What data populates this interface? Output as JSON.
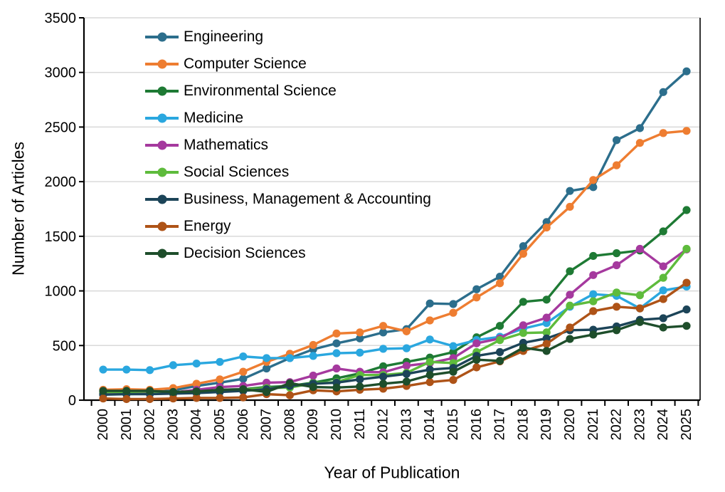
{
  "chart_data": {
    "type": "line",
    "title": "",
    "xlabel": "Year of Publication",
    "ylabel": "Number of Articles",
    "categories": [
      "2000",
      "2001",
      "2002",
      "2003",
      "2004",
      "2005",
      "2006",
      "2007",
      "2008",
      "2009",
      "2010",
      "2011",
      "2012",
      "2013",
      "2014",
      "2015",
      "2016",
      "2017",
      "2018",
      "2019",
      "2020",
      "2021",
      "2022",
      "2023",
      "2024",
      "2025"
    ],
    "ylim": [
      0,
      3500
    ],
    "ytick_step": 500,
    "grid": "horizontal",
    "grid_color": "#D9D9D9",
    "axis_color": "#000000",
    "legend_position": "top-left-inside",
    "series": [
      {
        "name": "Engineering",
        "color": "#2C6E8C",
        "values": [
          60,
          70,
          70,
          90,
          130,
          160,
          195,
          290,
          385,
          465,
          520,
          565,
          620,
          650,
          885,
          880,
          1015,
          1130,
          1410,
          1630,
          1915,
          1950,
          2380,
          2490,
          2820,
          3010
        ]
      },
      {
        "name": "Computer Science",
        "color": "#EE7D31",
        "values": [
          95,
          100,
          95,
          110,
          150,
          190,
          260,
          350,
          425,
          505,
          610,
          620,
          680,
          630,
          730,
          800,
          940,
          1070,
          1340,
          1580,
          1770,
          2015,
          2150,
          2355,
          2445,
          2465
        ]
      },
      {
        "name": "Environmental Science",
        "color": "#1E7A34",
        "values": [
          60,
          55,
          60,
          60,
          75,
          95,
          100,
          120,
          130,
          160,
          200,
          245,
          310,
          350,
          390,
          440,
          575,
          680,
          900,
          920,
          1180,
          1320,
          1345,
          1370,
          1545,
          1740
        ]
      },
      {
        "name": "Medicine",
        "color": "#2AA7DF",
        "values": [
          280,
          280,
          275,
          320,
          335,
          350,
          400,
          385,
          385,
          405,
          430,
          435,
          470,
          475,
          555,
          495,
          550,
          580,
          655,
          705,
          855,
          970,
          955,
          840,
          1005,
          1040
        ]
      },
      {
        "name": "Mathematics",
        "color": "#A5399E",
        "values": [
          70,
          75,
          75,
          70,
          95,
          120,
          130,
          160,
          165,
          225,
          290,
          260,
          255,
          315,
          340,
          385,
          520,
          565,
          685,
          755,
          965,
          1145,
          1235,
          1385,
          1225,
          1380
        ]
      },
      {
        "name": "Social Sciences",
        "color": "#5EBB3C",
        "values": [
          75,
          75,
          80,
          65,
          75,
          85,
          95,
          110,
          115,
          155,
          165,
          230,
          230,
          250,
          350,
          340,
          440,
          550,
          615,
          620,
          865,
          905,
          985,
          960,
          1120,
          1385
        ]
      },
      {
        "name": "Business, Management & Accounting",
        "color": "#1C4458",
        "values": [
          50,
          55,
          55,
          60,
          65,
          75,
          85,
          100,
          130,
          150,
          160,
          190,
          215,
          240,
          280,
          295,
          405,
          440,
          525,
          565,
          640,
          645,
          675,
          735,
          750,
          830
        ]
      },
      {
        "name": "Energy",
        "color": "#AE5317",
        "values": [
          15,
          10,
          10,
          15,
          20,
          20,
          25,
          55,
          45,
          90,
          80,
          95,
          105,
          130,
          165,
          185,
          300,
          355,
          450,
          515,
          665,
          815,
          855,
          840,
          925,
          1075
        ]
      },
      {
        "name": "Decision Sciences",
        "color": "#1E4E2B",
        "values": [
          85,
          85,
          85,
          75,
          80,
          95,
          100,
          75,
          155,
          120,
          115,
          125,
          150,
          170,
          230,
          260,
          370,
          360,
          480,
          450,
          560,
          600,
          640,
          715,
          665,
          680
        ]
      }
    ]
  }
}
